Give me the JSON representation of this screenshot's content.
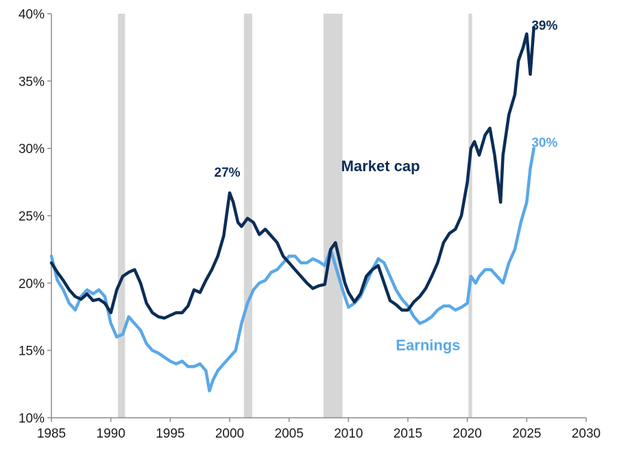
{
  "chart_data": {
    "type": "line",
    "title": "",
    "xlabel": "",
    "ylabel": "",
    "xlim": [
      1985,
      2030
    ],
    "ylim": [
      10,
      40
    ],
    "x_ticks": [
      1985,
      1990,
      1995,
      2000,
      2005,
      2010,
      2015,
      2020,
      2025,
      2030
    ],
    "x_tick_labels": [
      "1985",
      "1990",
      "1995",
      "2000",
      "2005",
      "2010",
      "2015",
      "2020",
      "2025",
      "2030"
    ],
    "y_ticks": [
      10,
      15,
      20,
      25,
      30,
      35,
      40
    ],
    "y_tick_labels": [
      "10%",
      "15%",
      "20%",
      "25%",
      "30%",
      "35%",
      "40%"
    ],
    "grid": false,
    "recession_bands": [
      [
        1990.6,
        1991.2
      ],
      [
        2001.2,
        2001.9
      ],
      [
        2007.9,
        2009.5
      ],
      [
        2020.1,
        2020.4
      ]
    ],
    "series": [
      {
        "name": "Market cap",
        "color": "#0b2d57",
        "x": [
          1985,
          1985.5,
          1986,
          1986.5,
          1987,
          1987.5,
          1988,
          1988.5,
          1989,
          1989.5,
          1990,
          1990.5,
          1991,
          1991.5,
          1992,
          1992.5,
          1993,
          1993.5,
          1994,
          1994.5,
          1995,
          1995.5,
          1996,
          1996.5,
          1997,
          1997.5,
          1998,
          1998.5,
          1999,
          1999.5,
          2000,
          2000.3,
          2000.7,
          2001,
          2001.5,
          2002,
          2002.5,
          2003,
          2003.5,
          2004,
          2004.5,
          2005,
          2005.5,
          2006,
          2006.5,
          2007,
          2007.5,
          2008,
          2008.5,
          2008.9,
          2009.3,
          2009.7,
          2010,
          2010.5,
          2011,
          2011.5,
          2012,
          2012.5,
          2013,
          2013.5,
          2014,
          2014.5,
          2015,
          2015.5,
          2016,
          2016.5,
          2017,
          2017.5,
          2018,
          2018.5,
          2019,
          2019.5,
          2020,
          2020.3,
          2020.6,
          2021,
          2021.5,
          2021.9,
          2022.3,
          2022.8,
          2023,
          2023.5,
          2024,
          2024.3,
          2024.7,
          2025,
          2025.3,
          2025.6
        ],
        "values": [
          21.5,
          20.8,
          20.2,
          19.5,
          19.0,
          18.8,
          19.2,
          18.7,
          18.8,
          18.5,
          17.8,
          19.5,
          20.5,
          20.8,
          21.0,
          20.0,
          18.5,
          17.8,
          17.5,
          17.4,
          17.6,
          17.8,
          17.8,
          18.3,
          19.5,
          19.3,
          20.2,
          21.0,
          22.0,
          23.5,
          26.7,
          26.0,
          24.5,
          24.2,
          24.8,
          24.5,
          23.6,
          24.0,
          23.5,
          23.0,
          22.0,
          21.5,
          21.0,
          20.5,
          20.0,
          19.6,
          19.8,
          19.9,
          22.5,
          23.0,
          21.5,
          20.0,
          19.3,
          18.6,
          19.2,
          20.5,
          21.0,
          21.3,
          20.0,
          18.7,
          18.4,
          18.0,
          18.0,
          18.6,
          19.0,
          19.6,
          20.5,
          21.5,
          23.0,
          23.7,
          24.0,
          25.0,
          27.5,
          30.0,
          30.5,
          29.5,
          31.0,
          31.5,
          29.5,
          26.0,
          29.5,
          32.5,
          34.0,
          36.5,
          37.5,
          38.5,
          35.5,
          39.0
        ]
      },
      {
        "name": "Earnings",
        "color": "#5aa8e8",
        "x": [
          1985,
          1985.5,
          1986,
          1986.5,
          1987,
          1987.5,
          1988,
          1988.5,
          1989,
          1989.5,
          1990,
          1990.5,
          1991,
          1991.5,
          1992,
          1992.5,
          1993,
          1993.5,
          1994,
          1994.5,
          1995,
          1995.5,
          1996,
          1996.5,
          1997,
          1997.5,
          1998,
          1998.3,
          1998.6,
          1999,
          1999.5,
          2000,
          2000.5,
          2001,
          2001.5,
          2002,
          2002.5,
          2003,
          2003.5,
          2004,
          2004.5,
          2005,
          2005.5,
          2006,
          2006.5,
          2007,
          2007.5,
          2008,
          2008.5,
          2009,
          2009.5,
          2010,
          2010.5,
          2011,
          2011.5,
          2012,
          2012.5,
          2013,
          2013.5,
          2014,
          2014.5,
          2015,
          2015.5,
          2016,
          2016.5,
          2017,
          2017.5,
          2018,
          2018.5,
          2019,
          2019.5,
          2020,
          2020.3,
          2020.7,
          2021,
          2021.5,
          2022,
          2022.5,
          2023,
          2023.5,
          2024,
          2024.5,
          2025,
          2025.3,
          2025.6
        ],
        "values": [
          22.0,
          20.2,
          19.5,
          18.5,
          18.0,
          19.0,
          19.5,
          19.2,
          19.5,
          19.0,
          17.0,
          16.0,
          16.2,
          17.5,
          17.0,
          16.5,
          15.5,
          15.0,
          14.8,
          14.5,
          14.2,
          14.0,
          14.2,
          13.8,
          13.8,
          14.0,
          13.5,
          12.0,
          12.8,
          13.5,
          14.0,
          14.5,
          15.0,
          17.0,
          18.5,
          19.5,
          20.0,
          20.2,
          20.8,
          21.0,
          21.5,
          22.0,
          22.0,
          21.5,
          21.5,
          21.8,
          21.6,
          21.3,
          22.5,
          21.0,
          19.5,
          18.2,
          18.5,
          19.0,
          20.0,
          21.0,
          21.8,
          21.5,
          20.5,
          19.5,
          18.8,
          18.3,
          17.5,
          17.0,
          17.2,
          17.5,
          18.0,
          18.3,
          18.3,
          18.0,
          18.2,
          18.5,
          20.5,
          20.0,
          20.5,
          21.0,
          21.0,
          20.5,
          20.0,
          21.5,
          22.5,
          24.5,
          26.0,
          28.5,
          30.0
        ]
      }
    ],
    "annotations": [
      {
        "text": "39%",
        "x": 2026.5,
        "y": 38.8,
        "color": "#0b2d57"
      },
      {
        "text": "27%",
        "x": 1999.8,
        "y": 27.9,
        "color": "#0b2d57"
      },
      {
        "text": "30%",
        "x": 2026.5,
        "y": 30.1,
        "color": "#5aa8e8"
      }
    ],
    "series_labels": [
      {
        "text": "Market cap",
        "x": 2012.7,
        "y": 28.3,
        "color": "#0b2d57"
      },
      {
        "text": "Earnings",
        "x": 2016.7,
        "y": 15.0,
        "color": "#5aa8e8"
      }
    ]
  }
}
